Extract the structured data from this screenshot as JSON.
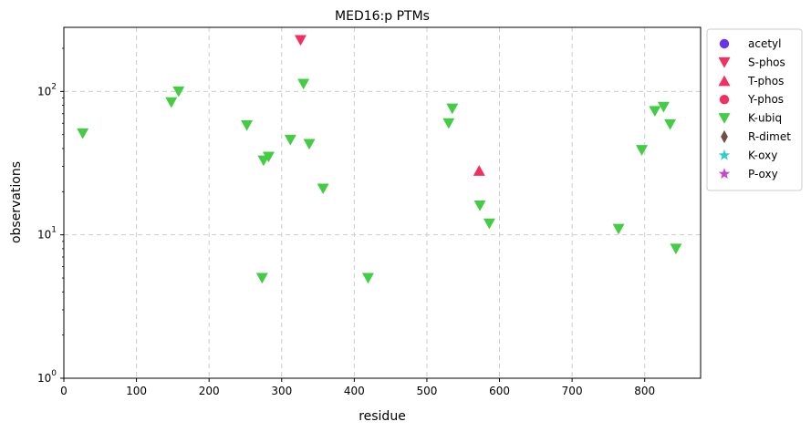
{
  "chart_data": {
    "type": "scatter",
    "title": "MED16:p PTMs",
    "xlabel": "residue",
    "ylabel": "observations",
    "xlim": [
      0,
      877
    ],
    "ylim": [
      1,
      280
    ],
    "yscale": "log",
    "grid": true,
    "legend_position": "outside-right",
    "x_ticks": [
      0,
      100,
      200,
      300,
      400,
      500,
      600,
      700,
      800
    ],
    "y_ticks": [
      {
        "value": 1,
        "base": "10",
        "exp": "0"
      },
      {
        "value": 10,
        "base": "10",
        "exp": "1"
      },
      {
        "value": 100,
        "base": "10",
        "exp": "2"
      }
    ],
    "series": [
      {
        "name": "acetyl",
        "marker": "circle",
        "color": "#6633ee",
        "points": []
      },
      {
        "name": "S-phos",
        "marker": "triangle-down",
        "color": "#f23060",
        "points": [
          [
            326,
            228
          ]
        ]
      },
      {
        "name": "T-phos",
        "marker": "triangle-up",
        "color": "#f23060",
        "points": [
          [
            572,
            28
          ]
        ]
      },
      {
        "name": "Y-phos",
        "marker": "circle",
        "color": "#f23060",
        "points": []
      },
      {
        "name": "K-ubiq",
        "marker": "triangle-down",
        "color": "#44cc44",
        "points": [
          [
            26,
            51
          ],
          [
            148,
            84
          ],
          [
            158,
            100
          ],
          [
            252,
            58
          ],
          [
            273,
            5
          ],
          [
            275,
            33
          ],
          [
            282,
            35
          ],
          [
            312,
            46
          ],
          [
            330,
            113
          ],
          [
            338,
            43
          ],
          [
            357,
            21
          ],
          [
            419,
            5
          ],
          [
            530,
            60
          ],
          [
            535,
            76
          ],
          [
            573,
            16
          ],
          [
            586,
            12
          ],
          [
            764,
            11
          ],
          [
            796,
            39
          ],
          [
            814,
            73
          ],
          [
            826,
            78
          ],
          [
            835,
            59
          ],
          [
            843,
            8
          ]
        ]
      },
      {
        "name": "R-dimet",
        "marker": "diamond",
        "color": "#6d4f47",
        "points": []
      },
      {
        "name": "K-oxy",
        "marker": "star",
        "color": "#33cccc",
        "points": []
      },
      {
        "name": "P-oxy",
        "marker": "star",
        "color": "#cc44cc",
        "points": []
      }
    ]
  }
}
